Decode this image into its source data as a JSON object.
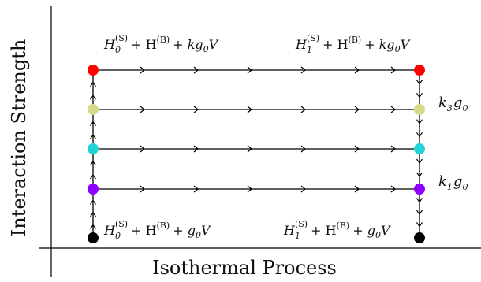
{
  "axes": {
    "x_label": "Isothermal Process",
    "y_label": "Interaction Strength"
  },
  "hamiltonian_labels": {
    "top_left": {
      "H": "H",
      "sub": "0",
      "sup": "(S)",
      "bath": "+ H",
      "bath_sup": "(B)",
      "tail": "+ kg",
      "tail_sub": "0",
      "end": "V"
    },
    "top_right": {
      "H": "H",
      "sub": "1",
      "sup": "(S)",
      "bath": "+ H",
      "bath_sup": "(B)",
      "tail": "+ kg",
      "tail_sub": "0",
      "end": "V"
    },
    "bottom_left": {
      "H": "H",
      "sub": "0",
      "sup": "(S)",
      "bath": "+ H",
      "bath_sup": "(B)",
      "tail": "+ g",
      "tail_sub": "0",
      "end": "V"
    },
    "bottom_right": {
      "H": "H",
      "sub": "1",
      "sup": "(S)",
      "bath": "+ H",
      "bath_sup": "(B)",
      "tail": "+ g",
      "tail_sub": "0",
      "end": "V"
    }
  },
  "coupling_labels": {
    "upper": {
      "k": "k",
      "k_sub": "3",
      "g": "g",
      "g_sub": "0"
    },
    "lower": {
      "k": "k",
      "k_sub": "1",
      "g": "g",
      "g_sub": "0"
    }
  },
  "levels": [
    {
      "name": "top",
      "color": "#ff0000"
    },
    {
      "name": "level3",
      "color": "#d6d98a"
    },
    {
      "name": "level2",
      "color": "#22d3d8"
    },
    {
      "name": "level1",
      "color": "#8c00ff"
    },
    {
      "name": "bottom",
      "color": "#000000"
    }
  ]
}
